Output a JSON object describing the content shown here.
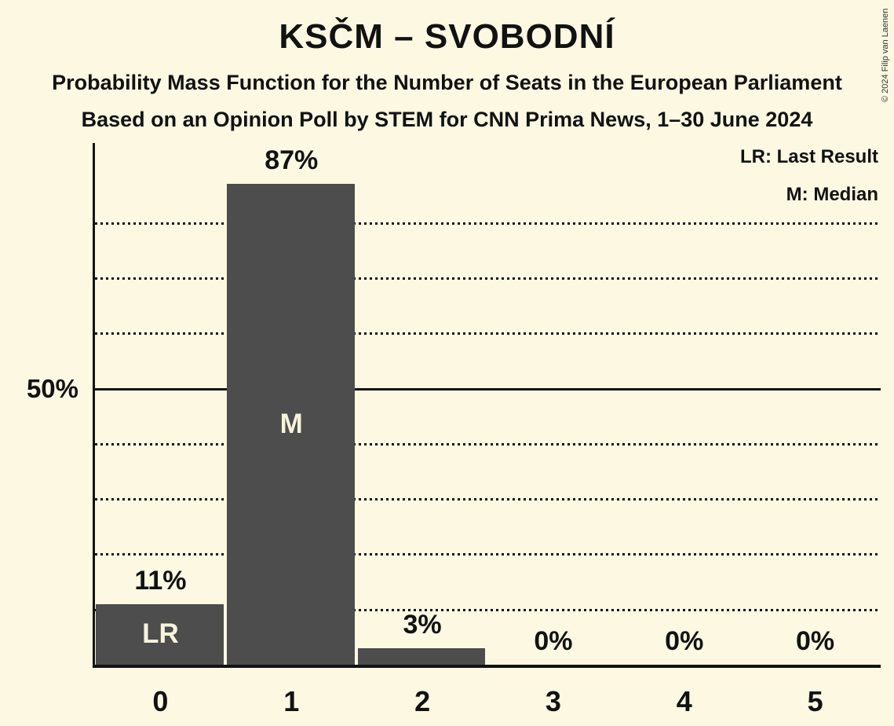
{
  "header": {
    "title": "KSČM – SVOBODNÍ",
    "subtitle": "Probability Mass Function for the Number of Seats in the European Parliament",
    "source_line": "Based on an Opinion Poll by STEM for CNN Prima News, 1–30 June 2024"
  },
  "copyright": "© 2024 Filip van Laenen",
  "legend": {
    "lr_label": "LR: Last Result",
    "m_label": "M: Median"
  },
  "y_axis": {
    "tick_label": "50%",
    "tick_value": 50
  },
  "chart_data": {
    "type": "bar",
    "title": "KSČM – SVOBODNÍ",
    "categories": [
      "0",
      "1",
      "2",
      "3",
      "4",
      "5"
    ],
    "values": [
      11,
      87,
      3,
      0,
      0,
      0
    ],
    "value_labels": [
      "11%",
      "87%",
      "3%",
      "0%",
      "0%",
      "0%"
    ],
    "ylim": [
      0,
      95
    ],
    "gridlines_pct": [
      10,
      20,
      30,
      40,
      50,
      60,
      70,
      80
    ],
    "solid_gridline_pct": 50,
    "grid": "dotted horizontal",
    "legend_position": "top-right",
    "annotations": [
      {
        "index": 0,
        "text": "LR"
      },
      {
        "index": 1,
        "text": "M"
      }
    ],
    "colors": {
      "bar": "#4D4D4D",
      "background": "#FCF8E2",
      "bar_label_text": "#F7F2DB",
      "text_and_lines": "#121212"
    }
  }
}
